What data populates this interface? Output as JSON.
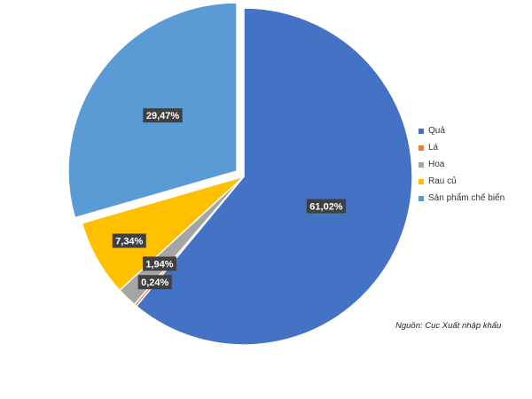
{
  "chart_data": {
    "type": "pie",
    "title": "",
    "categories": [
      "Quả",
      "Lá",
      "Hoa",
      "Rau củ",
      "Sản phẩm chế biến"
    ],
    "values": [
      61.02,
      0.24,
      1.94,
      7.34,
      29.47
    ],
    "labels": [
      "61,02%",
      "0,24%",
      "1,94%",
      "7,34%",
      "29,47%"
    ],
    "colors": [
      "#4472C4",
      "#ED7D31",
      "#A5A5A5",
      "#FFC000",
      "#5B9BD5"
    ],
    "legend_position": "right",
    "start_angle": "top",
    "direction": "clockwise",
    "exploded_slice": "Sản phẩm chế biến",
    "source_note": "Nguồn: Cục Xuất nhập khẩu"
  }
}
